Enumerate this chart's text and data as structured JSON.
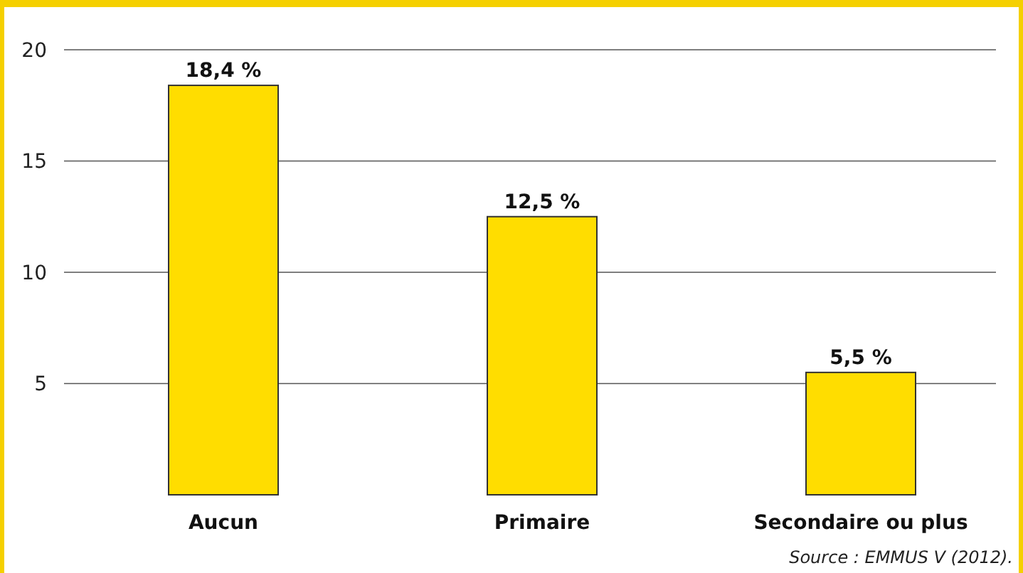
{
  "chart_data": {
    "type": "bar",
    "categories": [
      "Aucun",
      "Primaire",
      "Secondaire ou plus"
    ],
    "values": [
      18.4,
      12.5,
      5.5
    ],
    "color": "#ffdd00",
    "value_labels": [
      "18,4 %",
      "12,5 %",
      "5,5 %"
    ],
    "ylim": [
      0,
      20
    ],
    "yticks": [
      5,
      10,
      15,
      20
    ],
    "grid": "y",
    "annotations": [
      "Source : EMMUS V (2012)."
    ]
  }
}
